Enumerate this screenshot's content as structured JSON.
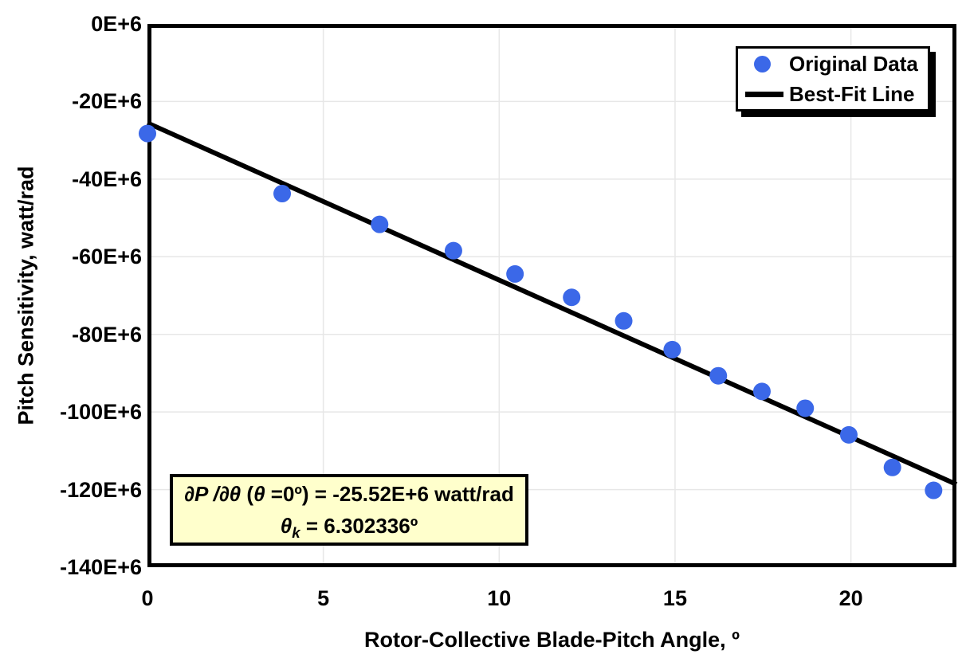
{
  "chart_data": {
    "type": "scatter",
    "title": "",
    "xlabel": "Rotor-Collective Blade-Pitch Angle, º",
    "ylabel": "Pitch Sensitivity, watt/rad",
    "xlim": [
      0,
      23
    ],
    "ylim_e6": [
      -140,
      0
    ],
    "grid": true,
    "x_ticks": [
      {
        "value": 0,
        "label": "0"
      },
      {
        "value": 5,
        "label": "5"
      },
      {
        "value": 10,
        "label": "10"
      },
      {
        "value": 15,
        "label": "15"
      },
      {
        "value": 20,
        "label": "20"
      }
    ],
    "y_ticks": [
      {
        "value": 0,
        "label": "0E+6"
      },
      {
        "value": -20,
        "label": "-20E+6"
      },
      {
        "value": -40,
        "label": "-40E+6"
      },
      {
        "value": -60,
        "label": "-60E+6"
      },
      {
        "value": -80,
        "label": "-80E+6"
      },
      {
        "value": -100,
        "label": "-100E+6"
      },
      {
        "value": -120,
        "label": "-120E+6"
      },
      {
        "value": -140,
        "label": "-140E+6"
      }
    ],
    "series": [
      {
        "name": "Original Data",
        "type": "scatter",
        "color": "#3B68E8",
        "marker_radius": 11,
        "points_deg_vs_e6_watt_per_rad": [
          [
            0.0,
            -28.24
          ],
          [
            3.83,
            -43.73
          ],
          [
            6.6,
            -51.66
          ],
          [
            8.7,
            -58.44
          ],
          [
            10.45,
            -64.44
          ],
          [
            12.06,
            -70.46
          ],
          [
            13.54,
            -76.53
          ],
          [
            14.92,
            -83.94
          ],
          [
            16.23,
            -90.67
          ],
          [
            17.47,
            -94.71
          ],
          [
            18.7,
            -99.04
          ],
          [
            19.94,
            -105.9
          ],
          [
            21.18,
            -114.3
          ],
          [
            22.35,
            -120.2
          ]
        ]
      },
      {
        "name": "Best-Fit Line",
        "type": "line",
        "color": "#000000",
        "fit": {
          "intercept_e6": -25.52,
          "theta_k_deg": 6.302336
        }
      }
    ],
    "legend": {
      "position": "top-right",
      "entries": [
        {
          "label": "Original Data",
          "marker": "dot",
          "color": "#3B68E8"
        },
        {
          "label": "Best-Fit Line",
          "marker": "line",
          "color": "#000000"
        }
      ]
    },
    "annotation": {
      "bg_color": "#FFFFCC",
      "line1_parts": [
        {
          "text": "∂P /∂θ ",
          "italic": true
        },
        {
          "text": "(",
          "italic": false
        },
        {
          "text": "θ",
          "italic": true
        },
        {
          "text": " =0º) = -25.52E+6 watt/rad",
          "italic": false
        }
      ],
      "line2_symbol": "θ",
      "line2_sub": "k",
      "line2_rest": " = 6.302336º"
    },
    "colors": {
      "grid": "#E7E7E7",
      "frame": "#000000",
      "background": "#FFFFFF"
    }
  }
}
